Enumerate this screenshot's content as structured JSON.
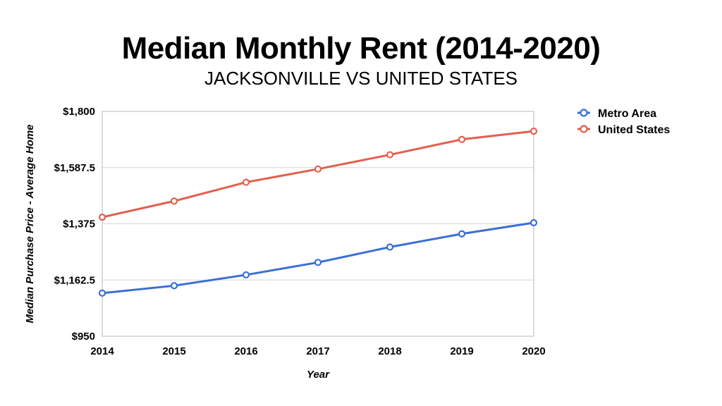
{
  "chart_data": {
    "type": "line",
    "title": "Median Monthly Rent (2014-2020)",
    "subtitle": "JACKSONVILLE VS UNITED STATES",
    "xlabel": "Year",
    "ylabel": "Median Purchase Price - Average Home",
    "x": [
      "2014",
      "2015",
      "2016",
      "2017",
      "2018",
      "2019",
      "2020"
    ],
    "ylim": [
      950,
      1800
    ],
    "yticks": [
      "$950",
      "$1,162.5",
      "$1,375",
      "$1,587.5",
      "$1,800"
    ],
    "ytick_values": [
      950,
      1162.5,
      1375,
      1587.5,
      1800
    ],
    "grid": true,
    "legend_position": "top-right",
    "series": [
      {
        "name": "Metro Area",
        "color": "#3B6FD4",
        "values": [
          1113,
          1141,
          1182,
          1229,
          1287,
          1337,
          1379
        ]
      },
      {
        "name": "United States",
        "color": "#E0614F",
        "values": [
          1400,
          1461,
          1532,
          1582,
          1636,
          1694,
          1725
        ]
      }
    ]
  }
}
